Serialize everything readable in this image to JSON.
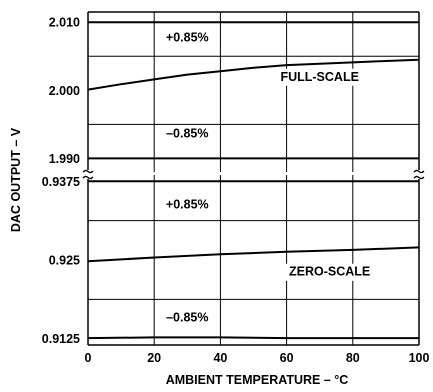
{
  "chart_data": {
    "type": "line",
    "xlabel": "AMBIENT TEMPERATURE – °C",
    "ylabel": "DAC OUTPUT – V",
    "x_ticks": [
      0,
      20,
      40,
      60,
      80,
      100
    ],
    "grid": true,
    "upper": {
      "ylim": [
        1.988,
        2.0115
      ],
      "y_ticks": [
        {
          "value": 2.01,
          "label": "2.010"
        },
        {
          "value": 2.0,
          "label": "2.000"
        },
        {
          "value": 1.99,
          "label": "1.990"
        }
      ],
      "series": [
        {
          "label": "+0.85%",
          "x": [
            0,
            100
          ],
          "y": [
            2.01,
            2.01
          ]
        },
        {
          "label": "FULL-SCALE",
          "x": [
            0,
            10,
            20,
            30,
            40,
            50,
            60,
            70,
            80,
            90,
            100
          ],
          "y": [
            2.0001,
            2.0009,
            2.0016,
            2.0023,
            2.0028,
            2.0033,
            2.0037,
            2.0039,
            2.0041,
            2.0043,
            2.0045
          ]
        },
        {
          "label": "–0.85%",
          "x": [
            0,
            100
          ],
          "y": [
            1.99,
            1.99
          ]
        }
      ]
    },
    "lower": {
      "ylim": [
        0.9115,
        0.9385
      ],
      "y_ticks": [
        {
          "value": 0.9375,
          "label": "0.9375"
        },
        {
          "value": 0.925,
          "label": "0.925"
        },
        {
          "value": 0.9125,
          "label": "0.9125"
        }
      ],
      "series": [
        {
          "label": "+0.85%",
          "x": [
            0,
            100
          ],
          "y": [
            0.9375,
            0.9375
          ]
        },
        {
          "label": "ZERO-SCALE",
          "x": [
            0,
            20,
            40,
            60,
            80,
            100
          ],
          "y": [
            0.9248,
            0.9254,
            0.9259,
            0.9263,
            0.9266,
            0.927
          ]
        },
        {
          "label": "–0.85%",
          "x": [
            0,
            20,
            40,
            60,
            80,
            100
          ],
          "y": [
            0.9126,
            0.9127,
            0.9127,
            0.9126,
            0.9126,
            0.9126
          ]
        }
      ]
    }
  }
}
